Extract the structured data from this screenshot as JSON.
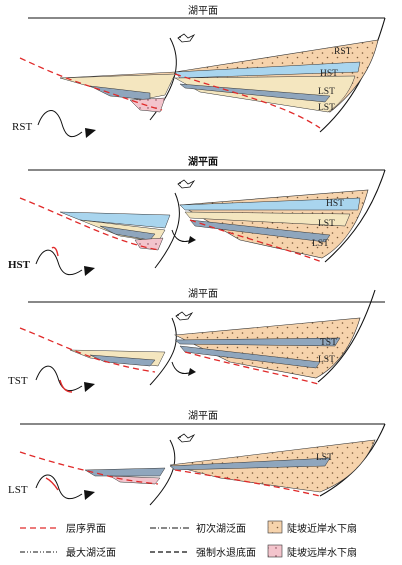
{
  "panels": [
    {
      "lake_level_label": "湖平面",
      "stage_label": "RST",
      "tracts": [
        "RST",
        "HST",
        "LST",
        "LST"
      ]
    },
    {
      "lake_level_label": "湖平面",
      "stage_label": "HST",
      "tracts": [
        "HST",
        "LST",
        "LST"
      ]
    },
    {
      "lake_level_label": "湖平面",
      "stage_label": "TST",
      "tracts": [
        "TST",
        "LST"
      ]
    },
    {
      "lake_level_label": "湖平面",
      "stage_label": "LST",
      "tracts": [
        "LST"
      ]
    }
  ],
  "legend": [
    {
      "text": "层序界面",
      "style": "red-dashed"
    },
    {
      "text": "初次湖泛面",
      "style": "dash-dot"
    },
    {
      "text": "陡坡近岸水下扇",
      "style": "swatch-orange"
    },
    {
      "text": "最大湖泛面",
      "style": "dash-dot-dot"
    },
    {
      "text": "强制水退底面",
      "style": "dashed"
    },
    {
      "text": "陡坡远岸水下扇",
      "style": "swatch-pink"
    }
  ],
  "colors": {
    "sequence_boundary": "#e02a2a",
    "near_shore_fan": "#f6d3ac",
    "far_shore_fan": "#f3c4cc",
    "tst_blue": "#a9d5ee",
    "lst_body": "#f4e6bf",
    "wedge_grey": "#8fa6bd"
  }
}
